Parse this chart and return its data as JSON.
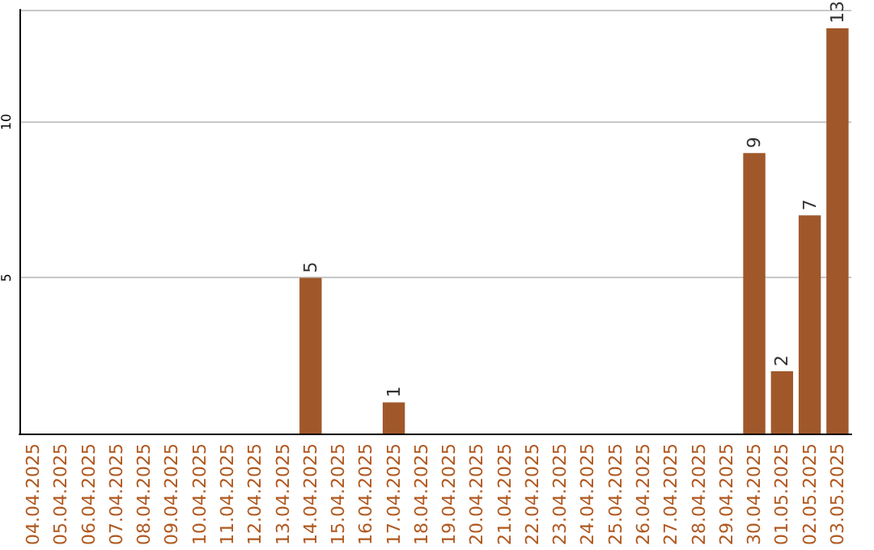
{
  "chart_data": {
    "type": "bar",
    "categories": [
      "04.04.2025",
      "05.04.2025",
      "06.04.2025",
      "07.04.2025",
      "08.04.2025",
      "09.04.2025",
      "10.04.2025",
      "11.04.2025",
      "12.04.2025",
      "13.04.2025",
      "14.04.2025",
      "15.04.2025",
      "16.04.2025",
      "17.04.2025",
      "18.04.2025",
      "19.04.2025",
      "20.04.2025",
      "21.04.2025",
      "22.04.2025",
      "23.04.2025",
      "24.04.2025",
      "25.04.2025",
      "26.04.2025",
      "27.04.2025",
      "28.04.2025",
      "29.04.2025",
      "30.04.2025",
      "01.05.2025",
      "02.05.2025",
      "03.05.2025"
    ],
    "values": [
      0,
      0,
      0,
      0,
      0,
      0,
      0,
      0,
      0,
      0,
      5,
      0,
      0,
      1,
      0,
      0,
      0,
      0,
      0,
      0,
      0,
      0,
      0,
      0,
      0,
      0,
      9,
      2,
      7,
      13
    ],
    "value_labels": [
      null,
      null,
      null,
      null,
      null,
      null,
      null,
      null,
      null,
      null,
      "5",
      null,
      null,
      "1",
      null,
      null,
      null,
      null,
      null,
      null,
      null,
      null,
      null,
      null,
      null,
      null,
      "9",
      "2",
      "7",
      "13"
    ],
    "color": "#a0582a",
    "ylim": [
      0,
      13.6
    ],
    "yticks": [
      5,
      10
    ],
    "grid": "y"
  }
}
